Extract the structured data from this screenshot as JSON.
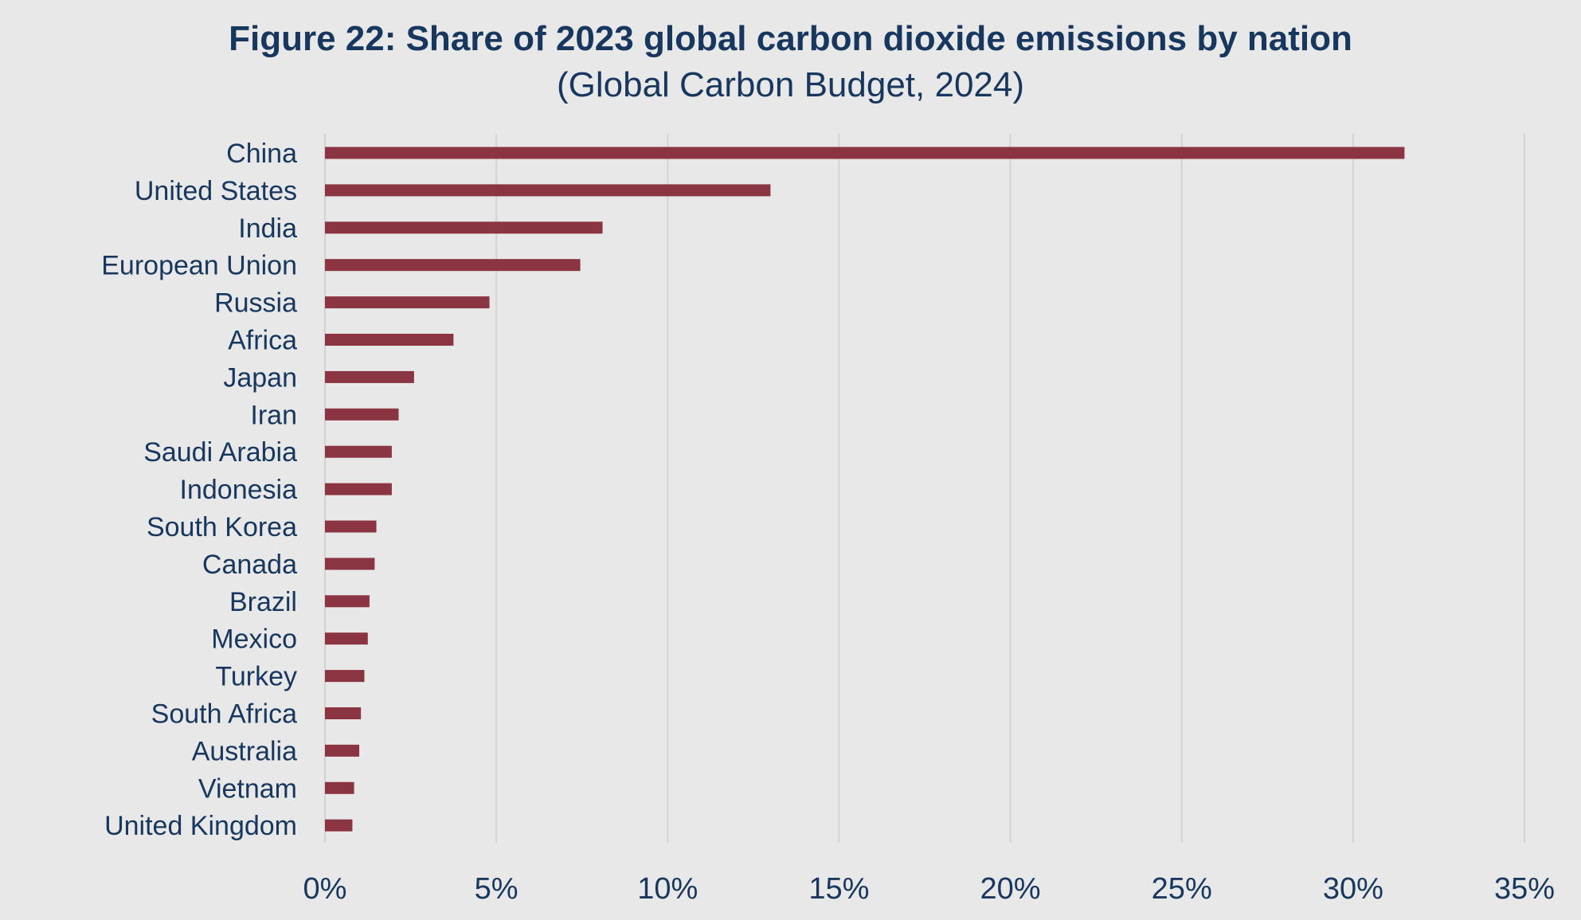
{
  "chart_data": {
    "type": "bar",
    "orientation": "horizontal",
    "title": "Figure 22: Share of 2023 global carbon dioxide emissions by nation",
    "subtitle": "(Global Carbon Budget, 2024)",
    "xlabel": "",
    "ylabel": "",
    "categories": [
      "China",
      "United States",
      "India",
      "European Union",
      "Russia",
      "Africa",
      "Japan",
      "Iran",
      "Saudi Arabia",
      "Indonesia",
      "South Korea",
      "Canada",
      "Brazil",
      "Mexico",
      "Turkey",
      "South Africa",
      "Australia",
      "Vietnam",
      "United Kingdom"
    ],
    "values": [
      31.5,
      13.0,
      8.1,
      7.45,
      4.8,
      3.75,
      2.6,
      2.15,
      1.95,
      1.95,
      1.5,
      1.45,
      1.3,
      1.25,
      1.15,
      1.05,
      1.0,
      0.85,
      0.8
    ],
    "xlim": [
      0,
      35
    ],
    "xticks": [
      "0%",
      "5%",
      "10%",
      "15%",
      "20%",
      "25%",
      "30%",
      "35%"
    ],
    "grid": true,
    "legend": "none",
    "bar_color": "#8b3442"
  }
}
